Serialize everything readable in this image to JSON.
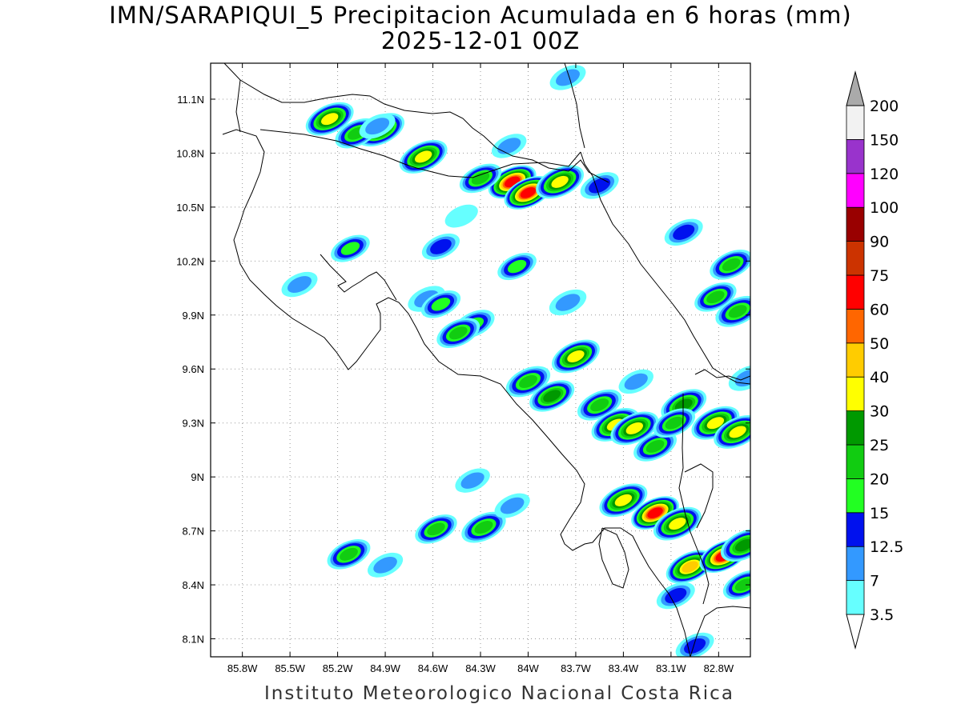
{
  "title_line1": "IMN/SARAPIQUI_5 Precipitacion Acumulada en 6 horas (mm)",
  "title_line2": "2025-12-01 00Z",
  "footer": "Instituto Meteorologico Nacional Costa Rica",
  "lon_ticks": [
    {
      "label": "85.8W",
      "value": -85.8
    },
    {
      "label": "85.5W",
      "value": -85.5
    },
    {
      "label": "85.2W",
      "value": -85.2
    },
    {
      "label": "84.9W",
      "value": -84.9
    },
    {
      "label": "84.6W",
      "value": -84.6
    },
    {
      "label": "84.3W",
      "value": -84.3
    },
    {
      "label": "84W",
      "value": -84.0
    },
    {
      "label": "83.7W",
      "value": -83.7
    },
    {
      "label": "83.4W",
      "value": -83.4
    },
    {
      "label": "83.1W",
      "value": -83.1
    },
    {
      "label": "82.8W",
      "value": -82.8
    }
  ],
  "lat_ticks": [
    {
      "label": "11.1N",
      "value": 11.1
    },
    {
      "label": "10.8N",
      "value": 10.8
    },
    {
      "label": "10.5N",
      "value": 10.5
    },
    {
      "label": "10.2N",
      "value": 10.2
    },
    {
      "label": "9.9N",
      "value": 9.9
    },
    {
      "label": "9.6N",
      "value": 9.6
    },
    {
      "label": "9.3N",
      "value": 9.3
    },
    {
      "label": "9N",
      "value": 9.0
    },
    {
      "label": "8.7N",
      "value": 8.7
    },
    {
      "label": "8.4N",
      "value": 8.4
    },
    {
      "label": "8.1N",
      "value": 8.1
    }
  ],
  "colorbar": [
    {
      "label": "3.5",
      "color": "#66ffff"
    },
    {
      "label": "7",
      "color": "#3399ff"
    },
    {
      "label": "12.5",
      "color": "#0011ee"
    },
    {
      "label": "15",
      "color": "#22ff22"
    },
    {
      "label": "20",
      "color": "#11cc11"
    },
    {
      "label": "25",
      "color": "#009900"
    },
    {
      "label": "30",
      "color": "#ffff00"
    },
    {
      "label": "40",
      "color": "#ffcc00"
    },
    {
      "label": "50",
      "color": "#ff6600"
    },
    {
      "label": "60",
      "color": "#ff0000"
    },
    {
      "label": "75",
      "color": "#cc3300"
    },
    {
      "label": "90",
      "color": "#990000"
    },
    {
      "label": "100",
      "color": "#ff00ff"
    },
    {
      "label": "120",
      "color": "#9933cc"
    },
    {
      "label": "150",
      "color": "#f2f2f2"
    },
    {
      "label": "200",
      "color": "#aaaaaa"
    }
  ],
  "precip_cells": [
    {
      "lon": -85.25,
      "lat": 10.99,
      "mm": 30
    },
    {
      "lon": -84.93,
      "lat": 10.93,
      "mm": 32
    },
    {
      "lon": -85.08,
      "lat": 10.91,
      "mm": 22
    },
    {
      "lon": -84.66,
      "lat": 10.78,
      "mm": 32
    },
    {
      "lon": -84.1,
      "lat": 10.64,
      "mm": 62
    },
    {
      "lon": -84.0,
      "lat": 10.58,
      "mm": 62
    },
    {
      "lon": -83.8,
      "lat": 10.64,
      "mm": 35
    },
    {
      "lon": -84.3,
      "lat": 10.66,
      "mm": 20
    },
    {
      "lon": -83.55,
      "lat": 10.62,
      "mm": 14
    },
    {
      "lon": -83.75,
      "lat": 11.22,
      "mm": 10
    },
    {
      "lon": -84.12,
      "lat": 10.84,
      "mm": 8
    },
    {
      "lon": -84.42,
      "lat": 10.45,
      "mm": 5
    },
    {
      "lon": -84.55,
      "lat": 10.28,
      "mm": 13
    },
    {
      "lon": -84.95,
      "lat": 10.95,
      "mm": 10
    },
    {
      "lon": -85.12,
      "lat": 10.27,
      "mm": 15
    },
    {
      "lon": -84.07,
      "lat": 10.17,
      "mm": 15
    },
    {
      "lon": -85.44,
      "lat": 10.07,
      "mm": 10
    },
    {
      "lon": -84.64,
      "lat": 9.99,
      "mm": 12
    },
    {
      "lon": -84.55,
      "lat": 9.96,
      "mm": 16
    },
    {
      "lon": -84.34,
      "lat": 9.85,
      "mm": 18
    },
    {
      "lon": -84.44,
      "lat": 9.8,
      "mm": 22
    },
    {
      "lon": -83.7,
      "lat": 9.67,
      "mm": 33
    },
    {
      "lon": -84.0,
      "lat": 9.53,
      "mm": 24
    },
    {
      "lon": -83.85,
      "lat": 9.45,
      "mm": 25
    },
    {
      "lon": -83.55,
      "lat": 9.4,
      "mm": 24
    },
    {
      "lon": -83.45,
      "lat": 9.29,
      "mm": 32
    },
    {
      "lon": -83.33,
      "lat": 9.27,
      "mm": 30
    },
    {
      "lon": -83.2,
      "lat": 9.17,
      "mm": 22
    },
    {
      "lon": -83.02,
      "lat": 9.4,
      "mm": 26
    },
    {
      "lon": -83.08,
      "lat": 9.3,
      "mm": 20
    },
    {
      "lon": -82.82,
      "lat": 9.3,
      "mm": 33
    },
    {
      "lon": -82.68,
      "lat": 9.25,
      "mm": 35
    },
    {
      "lon": -83.4,
      "lat": 8.87,
      "mm": 36
    },
    {
      "lon": -83.2,
      "lat": 8.8,
      "mm": 62
    },
    {
      "lon": -83.06,
      "lat": 8.74,
      "mm": 38
    },
    {
      "lon": -82.98,
      "lat": 8.5,
      "mm": 40
    },
    {
      "lon": -82.77,
      "lat": 8.56,
      "mm": 62
    },
    {
      "lon": -82.64,
      "lat": 8.62,
      "mm": 28
    },
    {
      "lon": -82.64,
      "lat": 8.4,
      "mm": 20
    },
    {
      "lon": -85.13,
      "lat": 8.57,
      "mm": 22
    },
    {
      "lon": -84.28,
      "lat": 8.72,
      "mm": 24
    },
    {
      "lon": -84.58,
      "lat": 8.71,
      "mm": 20
    },
    {
      "lon": -84.35,
      "lat": 8.98,
      "mm": 8
    },
    {
      "lon": -82.68,
      "lat": 9.92,
      "mm": 24
    },
    {
      "lon": -82.82,
      "lat": 10.0,
      "mm": 20
    },
    {
      "lon": -82.72,
      "lat": 10.18,
      "mm": 22
    },
    {
      "lon": -83.02,
      "lat": 10.36,
      "mm": 14
    },
    {
      "lon": -84.9,
      "lat": 8.51,
      "mm": 9
    },
    {
      "lon": -84.1,
      "lat": 8.84,
      "mm": 9
    },
    {
      "lon": -83.32,
      "lat": 9.53,
      "mm": 8
    },
    {
      "lon": -82.62,
      "lat": 9.55,
      "mm": 12
    },
    {
      "lon": -83.07,
      "lat": 8.34,
      "mm": 14
    },
    {
      "lon": -82.95,
      "lat": 8.06,
      "mm": 14
    },
    {
      "lon": -83.75,
      "lat": 9.97,
      "mm": 12
    }
  ]
}
